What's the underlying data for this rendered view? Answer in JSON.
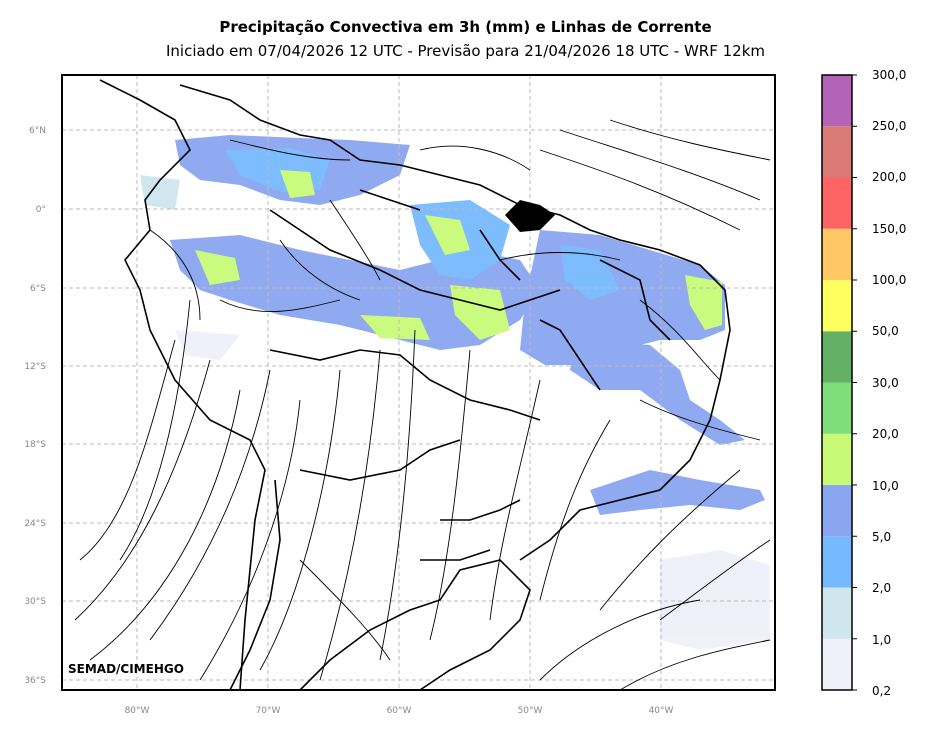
{
  "title": "Precipitação Convectiva em 3h (mm) e Linhas de Corrente",
  "subtitle": "Iniciado em 07/04/2026 12 UTC - Previsão para 21/04/2026 18 UTC - WRF 12km",
  "credit": "SEMAD/CIMEHGO",
  "lat_labels": [
    "6°N",
    "0°",
    "6°S",
    "12°S",
    "18°S",
    "24°S",
    "30°S",
    "36°S"
  ],
  "lon_labels": [
    "80°W",
    "70°W",
    "60°W",
    "50°W",
    "40°W"
  ],
  "colorbar": {
    "labels": [
      "0,2",
      "1,0",
      "2,0",
      "5,0",
      "10,0",
      "20,0",
      "30,0",
      "50,0",
      "100,0",
      "150,0",
      "200,0",
      "250,0",
      "300,0"
    ],
    "colors": [
      "#f0f0fa",
      "#cfe6ef",
      "#76b9ff",
      "#8aa6f0",
      "#c8fa78",
      "#80de7a",
      "#64b064",
      "#ffff60",
      "#ffc864",
      "#ff6464",
      "#d97a77",
      "#b464b8"
    ]
  }
}
